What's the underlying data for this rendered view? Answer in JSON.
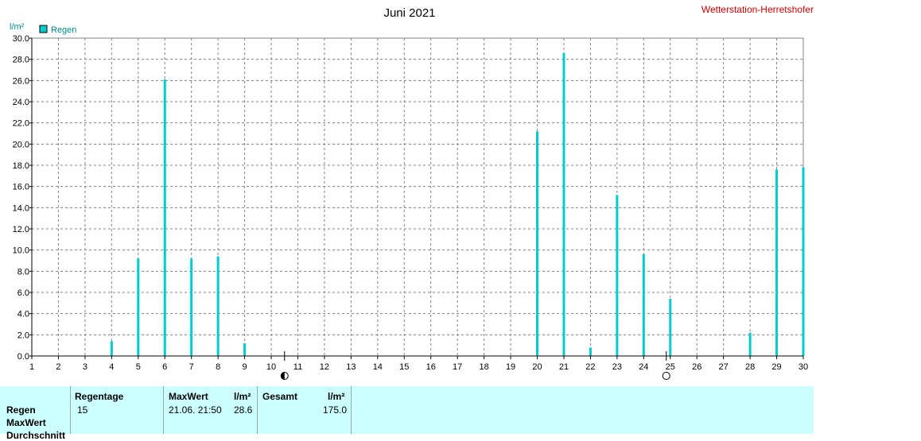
{
  "title": "Juni 2021",
  "station": "Wetterstation-Herretshofer",
  "unit_label": "l/m²",
  "legend": {
    "label": "Regen",
    "color": "#00cccc"
  },
  "chart_data": {
    "type": "bar",
    "title": "Juni 2021",
    "ylabel": "l/m²",
    "ylim": [
      0,
      30
    ],
    "y_ticks": [
      "0.0",
      "2.0",
      "4.0",
      "6.0",
      "8.0",
      "10.0",
      "12.0",
      "14.0",
      "16.0",
      "18.0",
      "20.0",
      "22.0",
      "24.0",
      "26.0",
      "28.0",
      "30.0"
    ],
    "x_ticks": [
      "1",
      "2",
      "3",
      "4",
      "5",
      "6",
      "7",
      "8",
      "9",
      "10",
      "11",
      "12",
      "13",
      "14",
      "15",
      "16",
      "17",
      "18",
      "19",
      "20",
      "21",
      "22",
      "23",
      "24",
      "25",
      "26",
      "27",
      "28",
      "29",
      "30"
    ],
    "grid": true,
    "series": [
      {
        "name": "Regen",
        "points": [
          {
            "day": 4,
            "value": 1.4
          },
          {
            "day": 5,
            "value": 9.2
          },
          {
            "day": 6,
            "value": 26.1
          },
          {
            "day": 7,
            "value": 9.2
          },
          {
            "day": 8,
            "value": 9.4
          },
          {
            "day": 9,
            "value": 1.2
          },
          {
            "day": 20,
            "value": 21.2
          },
          {
            "day": 21,
            "value": 28.6
          },
          {
            "day": 22,
            "value": 0.8
          },
          {
            "day": 23,
            "value": 15.2
          },
          {
            "day": 24,
            "value": 9.6
          },
          {
            "day": 25,
            "value": 5.4
          },
          {
            "day": 28,
            "value": 2.2
          },
          {
            "day": 29,
            "value": 17.6
          },
          {
            "day": 30,
            "value": 17.8
          }
        ]
      }
    ],
    "moon_phases": [
      {
        "day": 10.5,
        "phase": "new-moon"
      },
      {
        "day": 24.85,
        "phase": "full-moon"
      }
    ]
  },
  "stats": {
    "row_labels": [
      "Regen",
      "MaxWert",
      "Durchschnitt"
    ],
    "regentage_header": "Regentage",
    "regentage_value": "15",
    "maxwert_header": "MaxWert",
    "maxwert_unit": "l/m²",
    "maxwert_time": "21.06.  21:50",
    "maxwert_value": "28.6",
    "gesamt_header": "Gesamt",
    "gesamt_unit": "l/m²",
    "gesamt_value": "175.0"
  }
}
